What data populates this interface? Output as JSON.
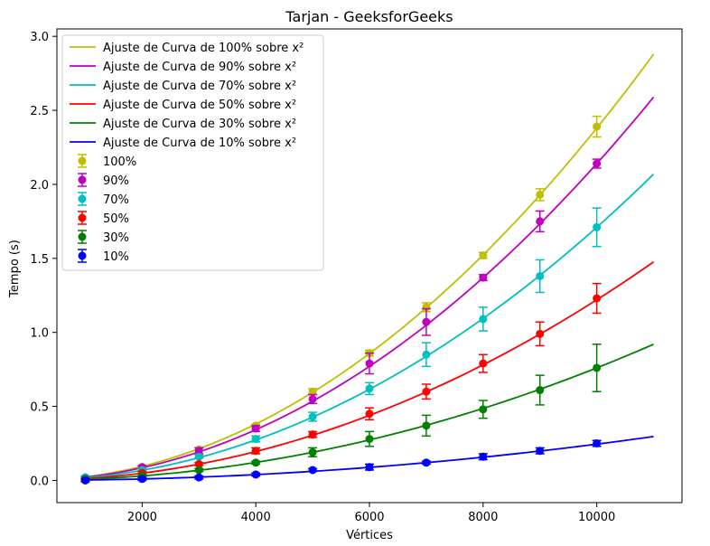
{
  "chart_data": {
    "type": "line",
    "title": "Tarjan - GeeksforGeeks",
    "xlabel": "Vértices",
    "ylabel": "Tempo (s)",
    "xlim": [
      500,
      11500
    ],
    "ylim": [
      -0.15,
      3.05
    ],
    "xticks": [
      2000,
      4000,
      6000,
      8000,
      10000
    ],
    "xtick_labels": [
      "2000",
      "4000",
      "6000",
      "8000",
      "10000"
    ],
    "yticks": [
      0.0,
      0.5,
      1.0,
      1.5,
      2.0,
      2.5,
      3.0
    ],
    "ytick_labels": [
      "0.0",
      "0.5",
      "1.0",
      "1.5",
      "2.0",
      "2.5",
      "3.0"
    ],
    "grid": false,
    "legend_position": "top-left",
    "fit_x_range": [
      1000,
      11000
    ],
    "series": [
      {
        "label": "100%",
        "fit_label": "Ajuste de Curva de 100% sobre x²",
        "color": "#bfbf00",
        "x": [
          1000,
          2000,
          3000,
          4000,
          5000,
          6000,
          7000,
          8000,
          9000,
          10000
        ],
        "y": [
          0.02,
          0.09,
          0.21,
          0.37,
          0.6,
          0.86,
          1.17,
          1.52,
          1.93,
          2.39
        ],
        "err": [
          0.01,
          0.01,
          0.01,
          0.01,
          0.02,
          0.02,
          0.03,
          0.02,
          0.04,
          0.07
        ],
        "fit_coef": 2.38e-08
      },
      {
        "label": "90%",
        "fit_label": "Ajuste de Curva de 90% sobre x²",
        "color": "#bf00bf",
        "x": [
          1000,
          2000,
          3000,
          4000,
          5000,
          6000,
          7000,
          8000,
          9000,
          10000
        ],
        "y": [
          0.02,
          0.09,
          0.2,
          0.35,
          0.55,
          0.79,
          1.07,
          1.37,
          1.75,
          2.14
        ],
        "err": [
          0.01,
          0.01,
          0.02,
          0.02,
          0.03,
          0.07,
          0.09,
          0.02,
          0.07,
          0.03
        ],
        "fit_coef": 2.14e-08
      },
      {
        "label": "70%",
        "fit_label": "Ajuste de Curva de 70% sobre x²",
        "color": "#00bfbf",
        "x": [
          1000,
          2000,
          3000,
          4000,
          5000,
          6000,
          7000,
          8000,
          9000,
          10000
        ],
        "y": [
          0.02,
          0.07,
          0.16,
          0.28,
          0.43,
          0.62,
          0.85,
          1.09,
          1.38,
          1.71
        ],
        "err": [
          0.01,
          0.01,
          0.01,
          0.02,
          0.03,
          0.04,
          0.08,
          0.08,
          0.11,
          0.13
        ],
        "fit_coef": 1.71e-08
      },
      {
        "label": "50%",
        "fit_label": "Ajuste de Curva de 50% sobre x²",
        "color": "#ff0000",
        "x": [
          1000,
          2000,
          3000,
          4000,
          5000,
          6000,
          7000,
          8000,
          9000,
          10000
        ],
        "y": [
          0.01,
          0.05,
          0.11,
          0.2,
          0.31,
          0.45,
          0.6,
          0.79,
          0.99,
          1.23
        ],
        "err": [
          0.01,
          0.01,
          0.01,
          0.02,
          0.02,
          0.04,
          0.05,
          0.06,
          0.08,
          0.1
        ],
        "fit_coef": 1.22e-08
      },
      {
        "label": "30%",
        "fit_label": "Ajuste de Curva de 30% sobre x²",
        "color": "#008000",
        "x": [
          1000,
          2000,
          3000,
          4000,
          5000,
          6000,
          7000,
          8000,
          9000,
          10000
        ],
        "y": [
          0.01,
          0.03,
          0.07,
          0.12,
          0.19,
          0.28,
          0.37,
          0.48,
          0.61,
          0.76
        ],
        "err": [
          0.01,
          0.01,
          0.01,
          0.01,
          0.03,
          0.05,
          0.07,
          0.06,
          0.1,
          0.16
        ],
        "fit_coef": 7.6e-09
      },
      {
        "label": "10%",
        "fit_label": "Ajuste de Curva de 10% sobre x²",
        "color": "#0000ff",
        "x": [
          1000,
          2000,
          3000,
          4000,
          5000,
          6000,
          7000,
          8000,
          9000,
          10000
        ],
        "y": [
          0.0,
          0.01,
          0.02,
          0.04,
          0.07,
          0.09,
          0.12,
          0.16,
          0.2,
          0.25
        ],
        "err": [
          0.01,
          0.01,
          0.01,
          0.01,
          0.01,
          0.02,
          0.01,
          0.02,
          0.02,
          0.02
        ],
        "fit_coef": 2.45e-09
      }
    ]
  }
}
